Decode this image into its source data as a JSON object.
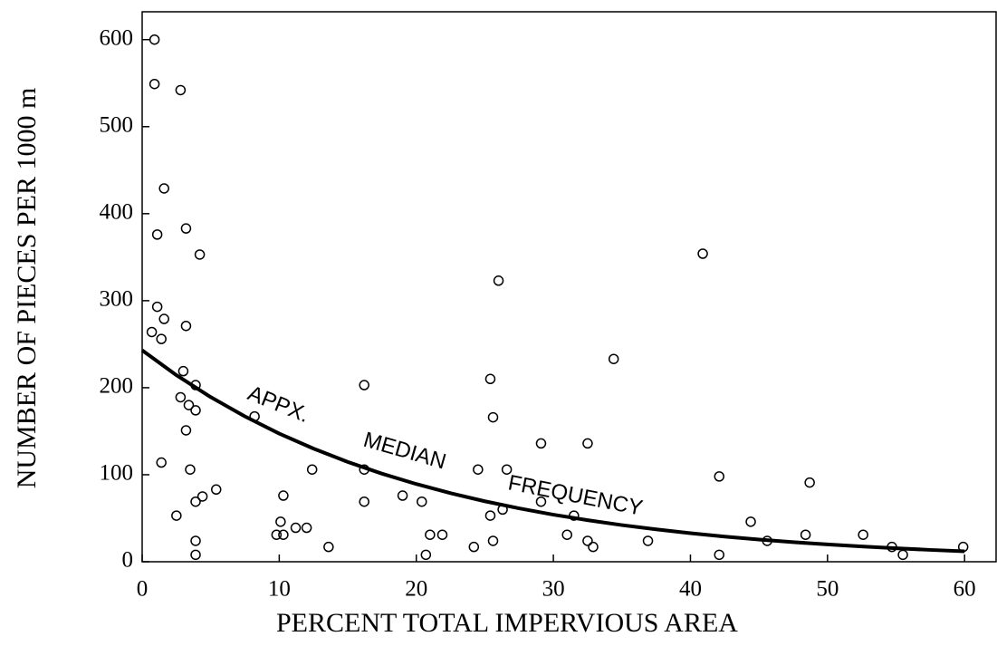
{
  "chart_data": {
    "type": "scatter",
    "x_label": "PERCENT TOTAL IMPERVIOUS AREA",
    "y_label": "NUMBER OF PIECES PER 1000 m",
    "xlim": [
      0,
      62.3
    ],
    "ylim": [
      0,
      632
    ],
    "xticks": [
      0,
      10,
      20,
      30,
      40,
      50,
      60
    ],
    "yticks": [
      0,
      100,
      200,
      300,
      400,
      500,
      600
    ],
    "annotations": [
      "APPX.",
      "MEDIAN",
      "FREQUENCY"
    ],
    "series": [
      {
        "type": "scatter",
        "color": "#000000",
        "x": [
          0.9,
          0.9,
          2.8,
          1.6,
          1.1,
          3.2,
          4.2,
          1.1,
          1.6,
          3.2,
          0.7,
          1.4,
          3.0,
          3.9,
          2.8,
          3.4,
          3.9,
          3.2,
          1.4,
          3.5,
          4.4,
          3.9,
          5.4,
          2.5,
          3.9,
          3.9,
          8.2,
          16.2,
          16.2,
          16.2,
          10.3,
          10.1,
          9.8,
          10.3,
          11.2,
          12.0,
          12.4,
          13.6,
          19.0,
          20.4,
          20.7,
          21.0,
          21.9,
          24.2,
          24.5,
          25.4,
          25.6,
          26.0,
          25.4,
          25.6,
          26.3,
          26.6,
          29.1,
          29.1,
          31.5,
          31.0,
          32.5,
          32.5,
          32.9,
          34.4,
          36.9,
          40.9,
          42.1,
          42.1,
          44.4,
          45.6,
          48.4,
          48.7,
          52.6,
          54.7,
          55.5,
          59.9
        ],
        "values": [
          600,
          549,
          542,
          429,
          376,
          383,
          353,
          293,
          279,
          271,
          264,
          256,
          219,
          203,
          189,
          180,
          174,
          151,
          114,
          106,
          75,
          69,
          83,
          53,
          24,
          8,
          167,
          203,
          106,
          69,
          76,
          46,
          31,
          31,
          39,
          39,
          106,
          17,
          76,
          69,
          8,
          31,
          31,
          17,
          106,
          210,
          166,
          323,
          53,
          24,
          60,
          106,
          136,
          69,
          53,
          31,
          136,
          24,
          17,
          233,
          24,
          354,
          98,
          8,
          46,
          24,
          31,
          91,
          31,
          17,
          8,
          17
        ]
      },
      {
        "type": "line",
        "color": "#000000",
        "x": [
          0,
          2.5,
          5,
          7.5,
          10,
          12.5,
          15,
          17.5,
          20,
          22.5,
          25,
          27.5,
          30,
          32.5,
          35,
          37.5,
          40,
          42.5,
          45,
          47.5,
          50,
          52.5,
          55,
          57.5,
          60
        ],
        "values": [
          243,
          214.4,
          189.2,
          167,
          147.3,
          130,
          114.7,
          101.2,
          89.3,
          78.8,
          69.5,
          61.4,
          54.1,
          47.8,
          42.1,
          37.2,
          32.8,
          28.9,
          25.5,
          22.5,
          19.9,
          17.6,
          15.5,
          13.6,
          12.0
        ]
      }
    ]
  }
}
